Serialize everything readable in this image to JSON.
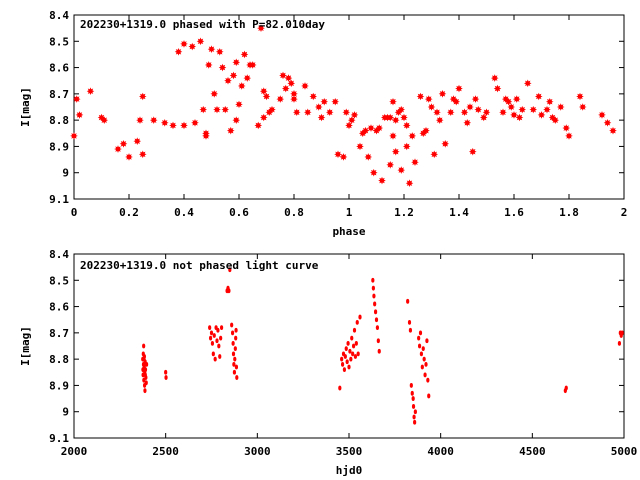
{
  "chart_data": [
    {
      "type": "scatter",
      "title": "202230+1319.0 phased with P=82.010day",
      "xlabel": "phase",
      "ylabel": "I[mag]",
      "xlim": [
        0,
        2
      ],
      "ylim": [
        9.1,
        8.4
      ],
      "y_inverted": true,
      "grid": false,
      "marker": "star",
      "marker_color": "#ff0000",
      "xticks": [
        "0",
        "0.2",
        "0.4",
        "0.6",
        "0.8",
        "1",
        "1.2",
        "1.4",
        "1.6",
        "1.8",
        "2"
      ],
      "yticks": [
        "8.4",
        "8.5",
        "8.6",
        "8.7",
        "8.8",
        "8.9",
        "9",
        "9.1"
      ],
      "points": [
        [
          0.0,
          8.86
        ],
        [
          0.01,
          8.72
        ],
        [
          0.02,
          8.78
        ],
        [
          0.06,
          8.69
        ],
        [
          0.1,
          8.79
        ],
        [
          0.11,
          8.8
        ],
        [
          0.16,
          8.91
        ],
        [
          0.18,
          8.89
        ],
        [
          0.2,
          8.94
        ],
        [
          0.23,
          8.88
        ],
        [
          0.24,
          8.8
        ],
        [
          0.25,
          8.93
        ],
        [
          0.25,
          8.71
        ],
        [
          0.29,
          8.8
        ],
        [
          0.33,
          8.81
        ],
        [
          0.36,
          8.82
        ],
        [
          0.38,
          8.54
        ],
        [
          0.4,
          8.82
        ],
        [
          0.4,
          8.51
        ],
        [
          0.43,
          8.52
        ],
        [
          0.44,
          8.81
        ],
        [
          0.46,
          8.5
        ],
        [
          0.47,
          8.76
        ],
        [
          0.48,
          8.86
        ],
        [
          0.48,
          8.85
        ],
        [
          0.49,
          8.59
        ],
        [
          0.5,
          8.53
        ],
        [
          0.51,
          8.7
        ],
        [
          0.52,
          8.76
        ],
        [
          0.53,
          8.54
        ],
        [
          0.54,
          8.6
        ],
        [
          0.55,
          8.76
        ],
        [
          0.56,
          8.65
        ],
        [
          0.57,
          8.84
        ],
        [
          0.58,
          8.63
        ],
        [
          0.59,
          8.58
        ],
        [
          0.59,
          8.8
        ],
        [
          0.6,
          8.74
        ],
        [
          0.61,
          8.67
        ],
        [
          0.62,
          8.55
        ],
        [
          0.63,
          8.64
        ],
        [
          0.64,
          8.59
        ],
        [
          0.65,
          8.59
        ],
        [
          0.67,
          8.82
        ],
        [
          0.68,
          8.45
        ],
        [
          0.69,
          8.79
        ],
        [
          0.69,
          8.69
        ],
        [
          0.7,
          8.71
        ],
        [
          0.71,
          8.77
        ],
        [
          0.72,
          8.76
        ],
        [
          0.75,
          8.72
        ],
        [
          0.76,
          8.63
        ],
        [
          0.77,
          8.68
        ],
        [
          0.78,
          8.64
        ],
        [
          0.79,
          8.66
        ],
        [
          0.8,
          8.72
        ],
        [
          0.8,
          8.7
        ],
        [
          0.81,
          8.77
        ],
        [
          0.84,
          8.67
        ],
        [
          0.85,
          8.77
        ],
        [
          0.87,
          8.71
        ],
        [
          0.89,
          8.75
        ],
        [
          0.9,
          8.79
        ],
        [
          0.91,
          8.73
        ],
        [
          0.93,
          8.77
        ],
        [
          0.95,
          8.73
        ],
        [
          0.96,
          8.93
        ],
        [
          0.98,
          8.94
        ],
        [
          0.99,
          8.77
        ],
        [
          1.0,
          8.82
        ],
        [
          1.01,
          8.8
        ],
        [
          1.02,
          8.78
        ],
        [
          1.04,
          8.9
        ],
        [
          1.05,
          8.85
        ],
        [
          1.06,
          8.84
        ],
        [
          1.07,
          8.94
        ],
        [
          1.08,
          8.83
        ],
        [
          1.09,
          9.0
        ],
        [
          1.1,
          8.84
        ],
        [
          1.11,
          8.83
        ],
        [
          1.12,
          9.03
        ],
        [
          1.13,
          8.79
        ],
        [
          1.14,
          8.79
        ],
        [
          1.15,
          8.97
        ],
        [
          1.15,
          8.79
        ],
        [
          1.16,
          8.86
        ],
        [
          1.16,
          8.73
        ],
        [
          1.17,
          8.8
        ],
        [
          1.17,
          8.92
        ],
        [
          1.18,
          8.77
        ],
        [
          1.19,
          8.76
        ],
        [
          1.19,
          8.99
        ],
        [
          1.2,
          8.79
        ],
        [
          1.21,
          8.9
        ],
        [
          1.21,
          8.82
        ],
        [
          1.22,
          9.04
        ],
        [
          1.23,
          8.86
        ],
        [
          1.24,
          8.96
        ],
        [
          1.26,
          8.71
        ],
        [
          1.27,
          8.85
        ],
        [
          1.28,
          8.84
        ],
        [
          1.29,
          8.72
        ],
        [
          1.3,
          8.75
        ],
        [
          1.31,
          8.93
        ],
        [
          1.32,
          8.77
        ],
        [
          1.33,
          8.8
        ],
        [
          1.34,
          8.7
        ],
        [
          1.35,
          8.89
        ],
        [
          1.37,
          8.77
        ],
        [
          1.38,
          8.72
        ],
        [
          1.39,
          8.73
        ],
        [
          1.4,
          8.68
        ],
        [
          1.42,
          8.77
        ],
        [
          1.43,
          8.81
        ],
        [
          1.44,
          8.75
        ],
        [
          1.45,
          8.92
        ],
        [
          1.46,
          8.72
        ],
        [
          1.47,
          8.76
        ],
        [
          1.49,
          8.79
        ],
        [
          1.5,
          8.77
        ],
        [
          1.53,
          8.64
        ],
        [
          1.54,
          8.68
        ],
        [
          1.56,
          8.77
        ],
        [
          1.57,
          8.72
        ],
        [
          1.58,
          8.73
        ],
        [
          1.59,
          8.75
        ],
        [
          1.6,
          8.78
        ],
        [
          1.61,
          8.72
        ],
        [
          1.62,
          8.79
        ],
        [
          1.63,
          8.76
        ],
        [
          1.65,
          8.66
        ],
        [
          1.67,
          8.76
        ],
        [
          1.69,
          8.71
        ],
        [
          1.7,
          8.78
        ],
        [
          1.72,
          8.76
        ],
        [
          1.73,
          8.73
        ],
        [
          1.74,
          8.79
        ],
        [
          1.75,
          8.8
        ],
        [
          1.77,
          8.75
        ],
        [
          1.79,
          8.83
        ],
        [
          1.8,
          8.86
        ],
        [
          1.84,
          8.71
        ],
        [
          1.85,
          8.75
        ],
        [
          1.92,
          8.78
        ],
        [
          1.94,
          8.81
        ],
        [
          1.96,
          8.84
        ]
      ]
    },
    {
      "type": "scatter",
      "title": "202230+1319.0 not phased light curve",
      "xlabel": "hjd0",
      "ylabel": "I[mag]",
      "xlim": [
        2000,
        5000
      ],
      "ylim": [
        9.1,
        8.4
      ],
      "y_inverted": true,
      "grid": false,
      "marker": "dot",
      "marker_color": "#ff0000",
      "xticks": [
        "2000",
        "2500",
        "3000",
        "3500",
        "4000",
        "4500",
        "5000"
      ],
      "yticks": [
        "8.4",
        "8.5",
        "8.6",
        "8.7",
        "8.8",
        "8.9",
        "9",
        "9.1"
      ],
      "points": [
        [
          2375,
          8.8
        ],
        [
          2376,
          8.84
        ],
        [
          2377,
          8.86
        ],
        [
          2378,
          8.78
        ],
        [
          2379,
          8.82
        ],
        [
          2380,
          8.75
        ],
        [
          2381,
          8.88
        ],
        [
          2382,
          8.8
        ],
        [
          2383,
          8.83
        ],
        [
          2384,
          8.79
        ],
        [
          2385,
          8.9
        ],
        [
          2386,
          8.85
        ],
        [
          2387,
          8.92
        ],
        [
          2388,
          8.81
        ],
        [
          2389,
          8.86
        ],
        [
          2390,
          8.84
        ],
        [
          2392,
          8.87
        ],
        [
          2394,
          8.89
        ],
        [
          2396,
          8.82
        ],
        [
          2500,
          8.85
        ],
        [
          2502,
          8.87
        ],
        [
          2740,
          8.68
        ],
        [
          2745,
          8.72
        ],
        [
          2750,
          8.7
        ],
        [
          2755,
          8.74
        ],
        [
          2760,
          8.78
        ],
        [
          2765,
          8.71
        ],
        [
          2770,
          8.8
        ],
        [
          2775,
          8.68
        ],
        [
          2780,
          8.73
        ],
        [
          2785,
          8.69
        ],
        [
          2790,
          8.75
        ],
        [
          2795,
          8.79
        ],
        [
          2800,
          8.72
        ],
        [
          2805,
          8.68
        ],
        [
          2835,
          8.54
        ],
        [
          2840,
          8.53
        ],
        [
          2845,
          8.54
        ],
        [
          2850,
          8.46
        ],
        [
          2860,
          8.67
        ],
        [
          2865,
          8.7
        ],
        [
          2868,
          8.74
        ],
        [
          2870,
          8.78
        ],
        [
          2872,
          8.82
        ],
        [
          2875,
          8.85
        ],
        [
          2877,
          8.8
        ],
        [
          2880,
          8.76
        ],
        [
          2882,
          8.72
        ],
        [
          2884,
          8.69
        ],
        [
          2886,
          8.83
        ],
        [
          2888,
          8.87
        ],
        [
          3450,
          8.91
        ],
        [
          3460,
          8.8
        ],
        [
          3465,
          8.82
        ],
        [
          3470,
          8.78
        ],
        [
          3475,
          8.84
        ],
        [
          3480,
          8.79
        ],
        [
          3485,
          8.76
        ],
        [
          3490,
          8.81
        ],
        [
          3495,
          8.74
        ],
        [
          3500,
          8.83
        ],
        [
          3505,
          8.77
        ],
        [
          3510,
          8.8
        ],
        [
          3515,
          8.72
        ],
        [
          3520,
          8.78
        ],
        [
          3525,
          8.75
        ],
        [
          3530,
          8.69
        ],
        [
          3535,
          8.79
        ],
        [
          3540,
          8.74
        ],
        [
          3545,
          8.66
        ],
        [
          3550,
          8.78
        ],
        [
          3560,
          8.64
        ],
        [
          3630,
          8.5
        ],
        [
          3633,
          8.53
        ],
        [
          3636,
          8.56
        ],
        [
          3640,
          8.59
        ],
        [
          3645,
          8.62
        ],
        [
          3650,
          8.65
        ],
        [
          3655,
          8.68
        ],
        [
          3660,
          8.73
        ],
        [
          3665,
          8.77
        ],
        [
          3820,
          8.58
        ],
        [
          3830,
          8.66
        ],
        [
          3835,
          8.69
        ],
        [
          3840,
          8.9
        ],
        [
          3845,
          8.93
        ],
        [
          3850,
          8.95
        ],
        [
          3852,
          8.98
        ],
        [
          3855,
          9.02
        ],
        [
          3858,
          9.04
        ],
        [
          3862,
          9.0
        ],
        [
          3880,
          8.72
        ],
        [
          3885,
          8.75
        ],
        [
          3890,
          8.7
        ],
        [
          3895,
          8.78
        ],
        [
          3900,
          8.83
        ],
        [
          3905,
          8.76
        ],
        [
          3910,
          8.8
        ],
        [
          3915,
          8.86
        ],
        [
          3920,
          8.82
        ],
        [
          3925,
          8.73
        ],
        [
          3930,
          8.88
        ],
        [
          3935,
          8.94
        ],
        [
          4680,
          8.92
        ],
        [
          4685,
          8.91
        ],
        [
          4975,
          8.74
        ],
        [
          4980,
          8.7
        ],
        [
          4985,
          8.71
        ],
        [
          4990,
          8.7
        ]
      ]
    }
  ]
}
